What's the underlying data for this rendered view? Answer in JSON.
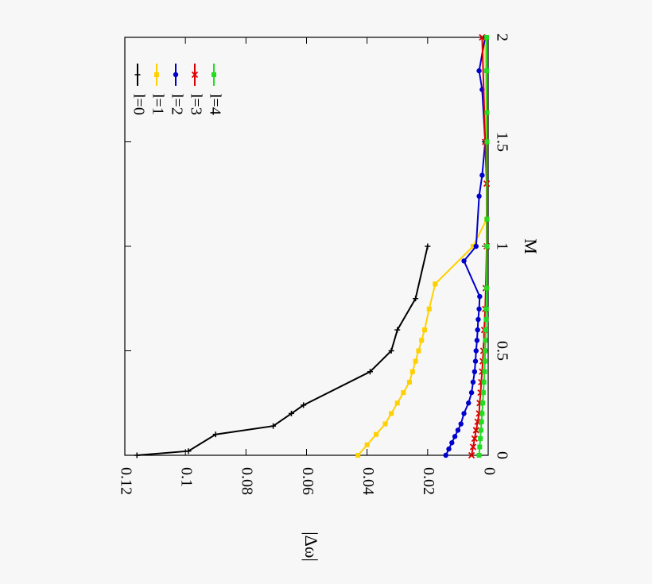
{
  "chart_data": {
    "type": "line",
    "orientation": "rotated-90-clockwise",
    "xlabel": "M",
    "ylabel": "|Δω|",
    "xlim": [
      0,
      2
    ],
    "ylim": [
      0,
      0.12
    ],
    "x_ticks": [
      "0",
      "0.5",
      "1",
      "1.5",
      "2"
    ],
    "y_ticks": [
      "0",
      "0.02",
      "0.04",
      "0.06",
      "0.08",
      "0.1",
      "0.12"
    ],
    "grid": false,
    "legend_placement": "top-right (rotated)",
    "series": [
      {
        "name": "l=0",
        "color": "#000000",
        "marker": "plus",
        "points": [
          [
            0.0,
            0.116
          ],
          [
            0.02,
            0.099
          ],
          [
            0.1,
            0.09
          ],
          [
            0.14,
            0.071
          ],
          [
            0.2,
            0.065
          ],
          [
            0.24,
            0.061
          ],
          [
            0.4,
            0.039
          ],
          [
            0.5,
            0.032
          ],
          [
            0.6,
            0.03
          ],
          [
            0.75,
            0.024
          ],
          [
            1.0,
            0.02
          ]
        ]
      },
      {
        "name": "l=1",
        "color": "#ffd000",
        "marker": "square",
        "points": [
          [
            0.0,
            0.043
          ],
          [
            0.05,
            0.04
          ],
          [
            0.1,
            0.037
          ],
          [
            0.15,
            0.034
          ],
          [
            0.2,
            0.032
          ],
          [
            0.25,
            0.03
          ],
          [
            0.3,
            0.028
          ],
          [
            0.35,
            0.026
          ],
          [
            0.4,
            0.025
          ],
          [
            0.45,
            0.024
          ],
          [
            0.5,
            0.023
          ],
          [
            0.55,
            0.022
          ],
          [
            0.6,
            0.021
          ],
          [
            0.7,
            0.0195
          ],
          [
            0.82,
            0.0175
          ],
          [
            1.0,
            0.005
          ],
          [
            1.13,
            0.0005
          ],
          [
            1.5,
            0.0005
          ],
          [
            2.0,
            0.001
          ]
        ]
      },
      {
        "name": "l=2",
        "color": "#0000cc",
        "marker": "circle",
        "points": [
          [
            0.0,
            0.014
          ],
          [
            0.03,
            0.013
          ],
          [
            0.06,
            0.012
          ],
          [
            0.09,
            0.011
          ],
          [
            0.12,
            0.01
          ],
          [
            0.15,
            0.009
          ],
          [
            0.2,
            0.008
          ],
          [
            0.25,
            0.0065
          ],
          [
            0.3,
            0.0055
          ],
          [
            0.35,
            0.005
          ],
          [
            0.4,
            0.0045
          ],
          [
            0.45,
            0.0042
          ],
          [
            0.5,
            0.004
          ],
          [
            0.55,
            0.0037
          ],
          [
            0.6,
            0.0035
          ],
          [
            0.65,
            0.0033
          ],
          [
            0.7,
            0.003
          ],
          [
            0.76,
            0.0028
          ],
          [
            0.93,
            0.008
          ],
          [
            1.0,
            0.004
          ],
          [
            1.24,
            0.003
          ],
          [
            1.34,
            0.002
          ],
          [
            1.5,
            0.001
          ],
          [
            1.75,
            0.002
          ],
          [
            1.84,
            0.003
          ],
          [
            2.0,
            0.001
          ]
        ]
      },
      {
        "name": "l=3",
        "color": "#dd0000",
        "marker": "x",
        "points": [
          [
            0.0,
            0.0055
          ],
          [
            0.04,
            0.005
          ],
          [
            0.08,
            0.0045
          ],
          [
            0.12,
            0.004
          ],
          [
            0.16,
            0.0035
          ],
          [
            0.2,
            0.003
          ],
          [
            0.25,
            0.0028
          ],
          [
            0.3,
            0.0025
          ],
          [
            0.35,
            0.0023
          ],
          [
            0.4,
            0.002
          ],
          [
            0.45,
            0.0018
          ],
          [
            0.5,
            0.0016
          ],
          [
            0.6,
            0.0013
          ],
          [
            0.7,
            0.001
          ],
          [
            0.8,
            0.0008
          ],
          [
            1.0,
            0.0005
          ],
          [
            1.3,
            0.0005
          ],
          [
            1.5,
            0.001
          ],
          [
            2.0,
            0.002
          ]
        ]
      },
      {
        "name": "l=4",
        "color": "#22dd22",
        "marker": "square",
        "points": [
          [
            0.0,
            0.003
          ],
          [
            0.04,
            0.0028
          ],
          [
            0.08,
            0.0026
          ],
          [
            0.12,
            0.0024
          ],
          [
            0.16,
            0.0022
          ],
          [
            0.2,
            0.002
          ],
          [
            0.25,
            0.0018
          ],
          [
            0.3,
            0.0016
          ],
          [
            0.35,
            0.0014
          ],
          [
            0.4,
            0.0012
          ],
          [
            0.45,
            0.0011
          ],
          [
            0.5,
            0.001
          ],
          [
            0.55,
            0.0009
          ],
          [
            0.6,
            0.0008
          ],
          [
            0.65,
            0.0007
          ],
          [
            0.7,
            0.0006
          ],
          [
            0.8,
            0.0005
          ],
          [
            1.0,
            0.0004
          ],
          [
            1.13,
            0.0004
          ],
          [
            1.5,
            0.0004
          ],
          [
            1.64,
            0.0004
          ],
          [
            1.84,
            0.0005
          ],
          [
            2.0,
            0.0005
          ]
        ]
      }
    ]
  }
}
